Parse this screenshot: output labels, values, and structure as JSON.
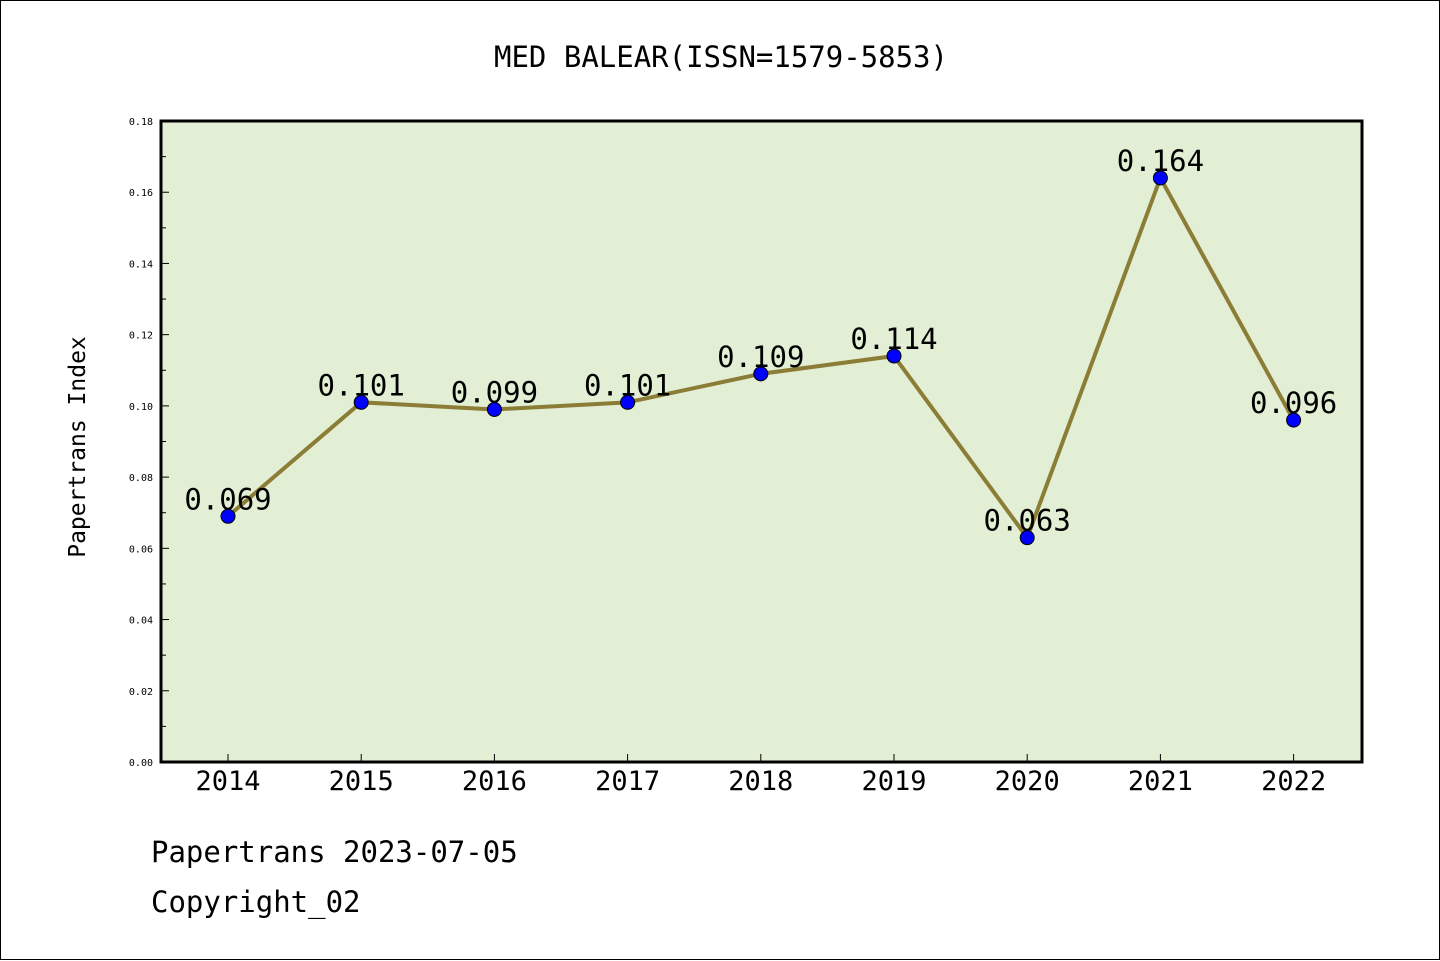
{
  "chart_data": {
    "type": "line",
    "title": "MED BALEAR(ISSN=1579-5853)",
    "xlabel": "",
    "ylabel": "Papertrans Index",
    "categories": [
      "2014",
      "2015",
      "2016",
      "2017",
      "2018",
      "2019",
      "2020",
      "2021",
      "2022"
    ],
    "values": [
      0.069,
      0.101,
      0.099,
      0.101,
      0.109,
      0.114,
      0.063,
      0.164,
      0.096
    ],
    "data_labels": [
      "0.069",
      "0.101",
      "0.099",
      "0.101",
      "0.109",
      "0.114",
      "0.063",
      "0.164",
      "0.096"
    ],
    "ylim": [
      0,
      0.18
    ],
    "yticks": [
      "0.00",
      "0.02",
      "0.04",
      "0.06",
      "0.08",
      "0.10",
      "0.12",
      "0.14",
      "0.16",
      "0.18"
    ],
    "grid": false,
    "legend": "none",
    "colors": {
      "line": "#8b7d35",
      "marker": "#0000ff",
      "plot_background": "#e2efd5",
      "axes": "#000000"
    }
  },
  "footer": {
    "line1": "Papertrans 2023-07-05",
    "line2": "Copyright_02"
  }
}
